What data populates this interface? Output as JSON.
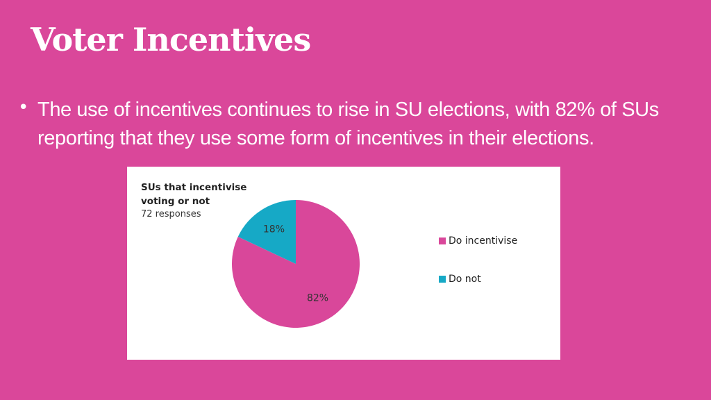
{
  "slide": {
    "title": "Voter Incentives",
    "bullet": "The use of incentives continues to rise in SU elections, with 82% of SUs reporting that they use some form of incentives in their elections."
  },
  "chart_data": {
    "type": "pie",
    "title": "SUs that incentivise voting or not",
    "subtitle": "72 responses",
    "categories": [
      "Do incentivise",
      "Do not"
    ],
    "values": [
      82,
      18
    ],
    "value_labels": [
      "82%",
      "18%"
    ],
    "colors": [
      "#d9479a",
      "#16a9c6"
    ],
    "legend": "right"
  }
}
